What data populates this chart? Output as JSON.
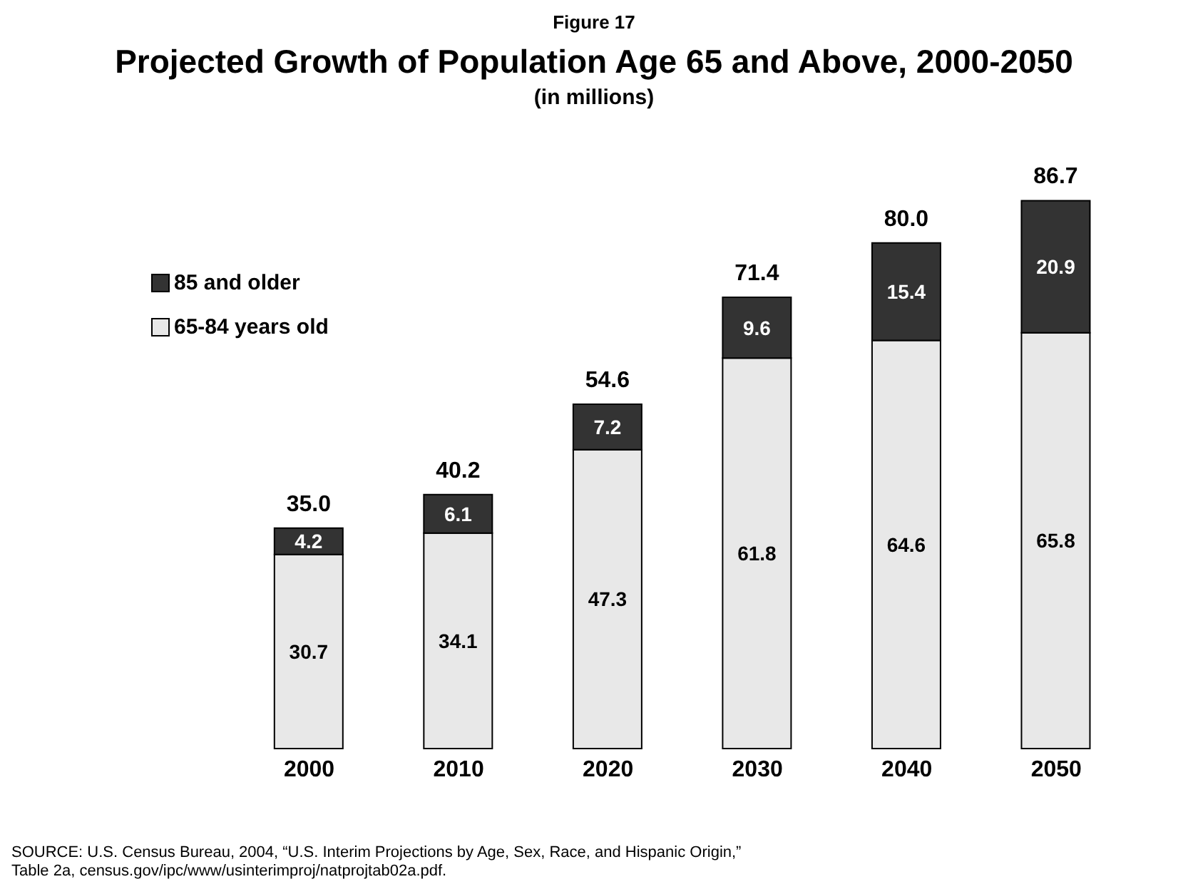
{
  "chart_data": {
    "type": "bar",
    "stacked": true,
    "subtitle": "Figure 17",
    "title": "Projected Growth of Population Age 65 and Above, 2000-2050",
    "ylabel": "(in millions)",
    "categories": [
      "2000",
      "2010",
      "2020",
      "2030",
      "2040",
      "2050"
    ],
    "series": [
      {
        "name": "65-84 years old",
        "color": "#e8e8e8",
        "values": [
          30.7,
          34.1,
          47.3,
          61.8,
          64.6,
          65.8
        ]
      },
      {
        "name": "85 and older",
        "color": "#333333",
        "values": [
          4.2,
          6.1,
          7.2,
          9.6,
          15.4,
          20.9
        ]
      }
    ],
    "totals": [
      "35.0",
      "40.2",
      "54.6",
      "71.4",
      "80.0",
      "86.7"
    ],
    "data_labels": true,
    "legend": "top left",
    "grid": false,
    "annotations": [
      "SOURCE:  U.S. Census Bureau, 2004, “U.S. Interim Projections by Age, Sex, Race, and Hispanic Origin,” Table 2a, census.gov/ipc/www/usinterimproj/natprojtab02a.pdf."
    ]
  }
}
